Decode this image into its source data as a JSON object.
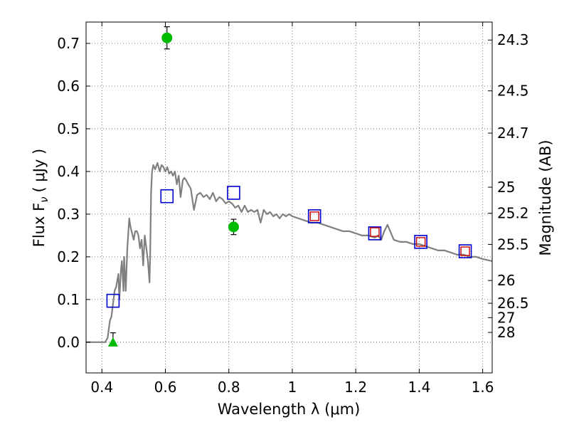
{
  "chart_data": {
    "type": "scatter",
    "xlabel": "Wavelength  λ (μm)",
    "ylabel": "Flux  F",
    "ylabel_sub": "ν",
    "ylabel_unit": "( μJy )",
    "ylabel_right": "Magnitude (AB)",
    "xlim": [
      0.35,
      1.63
    ],
    "ylim": [
      -0.072,
      0.75
    ],
    "grid": true,
    "x_ticks": [
      {
        "value": 0.4,
        "label": "0.4"
      },
      {
        "value": 0.6,
        "label": "0.6"
      },
      {
        "value": 0.8,
        "label": "0.8"
      },
      {
        "value": 1.0,
        "label": "1"
      },
      {
        "value": 1.2,
        "label": "1.2"
      },
      {
        "value": 1.4,
        "label": "1.4"
      },
      {
        "value": 1.6,
        "label": "1.6"
      }
    ],
    "y_ticks": [
      {
        "value": 0.0,
        "label": "0.0"
      },
      {
        "value": 0.1,
        "label": "0.1"
      },
      {
        "value": 0.2,
        "label": "0.2"
      },
      {
        "value": 0.3,
        "label": "0.3"
      },
      {
        "value": 0.4,
        "label": "0.4"
      },
      {
        "value": 0.5,
        "label": "0.5"
      },
      {
        "value": 0.6,
        "label": "0.6"
      },
      {
        "value": 0.7,
        "label": "0.7"
      }
    ],
    "mag_ticks": [
      {
        "flux": 0.7079,
        "label": "24.3"
      },
      {
        "flux": 0.5888,
        "label": "24.5"
      },
      {
        "flux": 0.4898,
        "label": "24.7"
      },
      {
        "flux": 0.3631,
        "label": "25"
      },
      {
        "flux": 0.302,
        "label": "25.2"
      },
      {
        "flux": 0.2291,
        "label": "25.5"
      },
      {
        "flux": 0.1445,
        "label": "26"
      },
      {
        "flux": 0.0912,
        "label": "26.5"
      },
      {
        "flux": 0.0575,
        "label": "27"
      },
      {
        "flux": 0.0229,
        "label": "28"
      }
    ],
    "colors": {
      "model": "#808080",
      "model_photometry": "#0000cc",
      "observed_photometry": "#cc0000",
      "detections": "#00bb00",
      "errorbars": "#000000",
      "grid": "#555555"
    },
    "model_sed": {
      "x": [
        0.35,
        0.41,
        0.418,
        0.425,
        0.43,
        0.435,
        0.44,
        0.445,
        0.452,
        0.455,
        0.46,
        0.463,
        0.468,
        0.47,
        0.475,
        0.48,
        0.486,
        0.49,
        0.5,
        0.505,
        0.51,
        0.515,
        0.52,
        0.525,
        0.53,
        0.535,
        0.54,
        0.545,
        0.55,
        0.552,
        0.555,
        0.558,
        0.562,
        0.568,
        0.575,
        0.582,
        0.588,
        0.594,
        0.6,
        0.606,
        0.612,
        0.618,
        0.624,
        0.63,
        0.636,
        0.642,
        0.648,
        0.655,
        0.66,
        0.665,
        0.672,
        0.68,
        0.69,
        0.7,
        0.71,
        0.72,
        0.73,
        0.74,
        0.75,
        0.76,
        0.77,
        0.78,
        0.79,
        0.8,
        0.81,
        0.82,
        0.83,
        0.84,
        0.85,
        0.86,
        0.87,
        0.88,
        0.89,
        0.9,
        0.91,
        0.92,
        0.93,
        0.94,
        0.95,
        0.96,
        0.97,
        0.98,
        0.99,
        1.0,
        1.02,
        1.04,
        1.06,
        1.08,
        1.1,
        1.12,
        1.14,
        1.16,
        1.18,
        1.2,
        1.22,
        1.24,
        1.26,
        1.27,
        1.28,
        1.29,
        1.3,
        1.32,
        1.34,
        1.36,
        1.38,
        1.4,
        1.42,
        1.44,
        1.46,
        1.48,
        1.5,
        1.52,
        1.54,
        1.56,
        1.58,
        1.6,
        1.63
      ],
      "y": [
        0.0,
        0.0,
        0.01,
        0.05,
        0.06,
        0.09,
        0.12,
        0.13,
        0.16,
        0.1,
        0.17,
        0.19,
        0.12,
        0.2,
        0.12,
        0.22,
        0.29,
        0.27,
        0.24,
        0.26,
        0.26,
        0.25,
        0.22,
        0.24,
        0.18,
        0.25,
        0.22,
        0.19,
        0.14,
        0.2,
        0.35,
        0.4,
        0.415,
        0.405,
        0.42,
        0.4,
        0.415,
        0.41,
        0.4,
        0.41,
        0.395,
        0.4,
        0.39,
        0.4,
        0.37,
        0.39,
        0.34,
        0.38,
        0.385,
        0.38,
        0.37,
        0.36,
        0.31,
        0.345,
        0.35,
        0.34,
        0.345,
        0.335,
        0.35,
        0.33,
        0.34,
        0.335,
        0.325,
        0.33,
        0.325,
        0.315,
        0.32,
        0.305,
        0.32,
        0.305,
        0.31,
        0.305,
        0.31,
        0.28,
        0.31,
        0.3,
        0.305,
        0.295,
        0.3,
        0.29,
        0.3,
        0.295,
        0.3,
        0.295,
        0.29,
        0.285,
        0.28,
        0.28,
        0.275,
        0.27,
        0.265,
        0.26,
        0.26,
        0.255,
        0.25,
        0.25,
        0.245,
        0.25,
        0.24,
        0.26,
        0.275,
        0.24,
        0.235,
        0.235,
        0.23,
        0.23,
        0.225,
        0.22,
        0.215,
        0.215,
        0.21,
        0.205,
        0.205,
        0.2,
        0.2,
        0.195,
        0.19
      ]
    },
    "model_photometry": {
      "x": [
        0.435,
        0.605,
        0.815,
        1.07,
        1.26,
        1.405,
        1.545
      ],
      "y": [
        0.097,
        0.342,
        0.35,
        0.295,
        0.255,
        0.235,
        0.213
      ]
    },
    "observed_photometry": {
      "x": [
        1.07,
        1.26,
        1.405,
        1.545
      ],
      "y": [
        0.295,
        0.258,
        0.235,
        0.213
      ]
    },
    "detections": {
      "x": [
        0.605,
        0.815
      ],
      "y": [
        0.713,
        0.27
      ],
      "yerr": [
        0.026,
        0.018
      ]
    },
    "upper_limit": {
      "x": 0.435,
      "y": 0.0,
      "ytop": 0.022
    }
  }
}
